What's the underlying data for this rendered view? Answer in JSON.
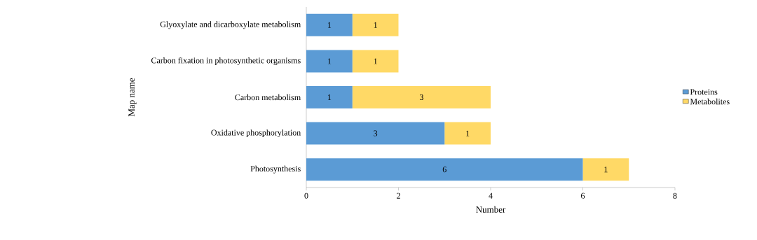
{
  "chart_data": {
    "type": "bar",
    "orientation": "horizontal",
    "stacked": true,
    "xlabel": "Number",
    "ylabel": "Map name",
    "categories": [
      "Glyoxylate and dicarboxylate metabolism",
      "Carbon fixation in photosynthetic organisms",
      "Carbon metabolism",
      "Oxidative phosphorylation",
      "Photosynthesis"
    ],
    "series": [
      {
        "name": "Proteins",
        "color": "#5b9bd5",
        "values": [
          1,
          1,
          1,
          3,
          6
        ]
      },
      {
        "name": "Metabolites",
        "color": "#ffd966",
        "values": [
          1,
          1,
          3,
          1,
          1
        ]
      }
    ],
    "xlim": [
      0,
      8
    ],
    "xticks": [
      0,
      2,
      4,
      6,
      8
    ],
    "grid": false,
    "legend": "right",
    "data_labels": true
  }
}
